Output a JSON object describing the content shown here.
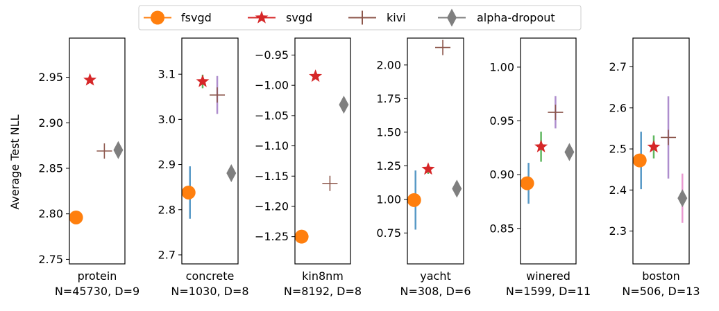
{
  "legend": [
    {
      "name": "fsvgd",
      "marker": "circle",
      "color": "#ff7f0e"
    },
    {
      "name": "svgd",
      "marker": "star",
      "color": "#d62728"
    },
    {
      "name": "kivi",
      "marker": "plus",
      "color": "#8c564b"
    },
    {
      "name": "alpha-dropout",
      "marker": "diamond",
      "color": "#7f7f7f"
    }
  ],
  "colors": {
    "fsvgd": "#ff7f0e",
    "svgd": "#d62728",
    "kivi": "#8c564b",
    "alpha-dropout": "#7f7f7f",
    "fsvgd_err": "#1f77b4",
    "svgd_err": "#2ca02c",
    "kivi_err": "#9467bd",
    "alpha-dropout_err": "#e377c2"
  },
  "chart_data": [
    {
      "type": "scatter",
      "ylabel": "Average Test NLL",
      "xlabel_line1": "protein",
      "xlabel_line2": "N=45730, D=9",
      "ylim": [
        2.745,
        2.993
      ],
      "yticks": [
        2.75,
        2.8,
        2.85,
        2.9,
        2.95
      ],
      "ytick_labels": [
        "2.75",
        "2.80",
        "2.85",
        "2.90",
        "2.95"
      ],
      "points": [
        {
          "series": "fsvgd",
          "mean": 2.796,
          "err": 0.0
        },
        {
          "series": "svgd",
          "mean": 2.947,
          "err": 0.0
        },
        {
          "series": "kivi",
          "mean": 2.869,
          "err": 0.0
        },
        {
          "series": "alpha-dropout",
          "mean": 2.87,
          "err": 0.0
        }
      ]
    },
    {
      "type": "scatter",
      "ylabel": "",
      "xlabel_line1": "concrete",
      "xlabel_line2": "N=1030, D=8",
      "ylim": [
        2.68,
        3.18
      ],
      "yticks": [
        2.7,
        2.8,
        2.9,
        3.0,
        3.1
      ],
      "ytick_labels": [
        "2.7",
        "2.8",
        "2.9",
        "3.0",
        "3.1"
      ],
      "points": [
        {
          "series": "fsvgd",
          "mean": 2.838,
          "err": 0.058
        },
        {
          "series": "svgd",
          "mean": 3.084,
          "err": 0.015
        },
        {
          "series": "kivi",
          "mean": 3.054,
          "err": 0.042
        },
        {
          "series": "alpha-dropout",
          "mean": 2.881,
          "err": 0.0
        }
      ]
    },
    {
      "type": "scatter",
      "ylabel": "",
      "xlabel_line1": "kin8nm",
      "xlabel_line2": "N=8192, D=8",
      "ylim": [
        -1.295,
        -0.922
      ],
      "yticks": [
        -1.25,
        -1.2,
        -1.15,
        -1.1,
        -1.05,
        -1.0,
        -0.95
      ],
      "ytick_labels": [
        "−1.25",
        "−1.20",
        "−1.15",
        "−1.10",
        "−1.05",
        "−1.00",
        "−0.95"
      ],
      "points": [
        {
          "series": "fsvgd",
          "mean": -1.25,
          "err": 0.0
        },
        {
          "series": "svgd",
          "mean": -0.985,
          "err": 0.0
        },
        {
          "series": "kivi",
          "mean": -1.162,
          "err": 0.0
        },
        {
          "series": "alpha-dropout",
          "mean": -1.032,
          "err": 0.0
        }
      ]
    },
    {
      "type": "scatter",
      "ylabel": "",
      "xlabel_line1": "yacht",
      "xlabel_line2": "N=308, D=6",
      "ylim": [
        0.52,
        2.2
      ],
      "yticks": [
        0.75,
        1.0,
        1.25,
        1.5,
        1.75,
        2.0
      ],
      "ytick_labels": [
        "0.75",
        "1.00",
        "1.25",
        "1.50",
        "1.75",
        "2.00"
      ],
      "points": [
        {
          "series": "fsvgd",
          "mean": 0.995,
          "err": 0.22
        },
        {
          "series": "svgd",
          "mean": 1.225,
          "err": 0.035
        },
        {
          "series": "kivi",
          "mean": 2.13,
          "err": 0.0
        },
        {
          "series": "alpha-dropout",
          "mean": 1.08,
          "err": 0.0
        }
      ]
    },
    {
      "type": "scatter",
      "ylabel": "",
      "xlabel_line1": "winered",
      "xlabel_line2": "N=1599, D=11",
      "ylim": [
        0.817,
        1.027
      ],
      "yticks": [
        0.85,
        0.9,
        0.95,
        1.0
      ],
      "ytick_labels": [
        "0.85",
        "0.90",
        "0.95",
        "1.00"
      ],
      "points": [
        {
          "series": "fsvgd",
          "mean": 0.892,
          "err": 0.019
        },
        {
          "series": "svgd",
          "mean": 0.926,
          "err": 0.014
        },
        {
          "series": "kivi",
          "mean": 0.958,
          "err": 0.015
        },
        {
          "series": "alpha-dropout",
          "mean": 0.921,
          "err": 0.0
        }
      ]
    },
    {
      "type": "scatter",
      "ylabel": "",
      "xlabel_line1": "boston",
      "xlabel_line2": "N=506, D=13",
      "ylim": [
        2.22,
        2.77
      ],
      "yticks": [
        2.3,
        2.4,
        2.5,
        2.6,
        2.7
      ],
      "ytick_labels": [
        "2.3",
        "2.4",
        "2.5",
        "2.6",
        "2.7"
      ],
      "points": [
        {
          "series": "fsvgd",
          "mean": 2.472,
          "err": 0.07
        },
        {
          "series": "svgd",
          "mean": 2.505,
          "err": 0.028
        },
        {
          "series": "kivi",
          "mean": 2.528,
          "err": 0.1
        },
        {
          "series": "alpha-dropout",
          "mean": 2.38,
          "err": 0.06
        }
      ]
    }
  ]
}
